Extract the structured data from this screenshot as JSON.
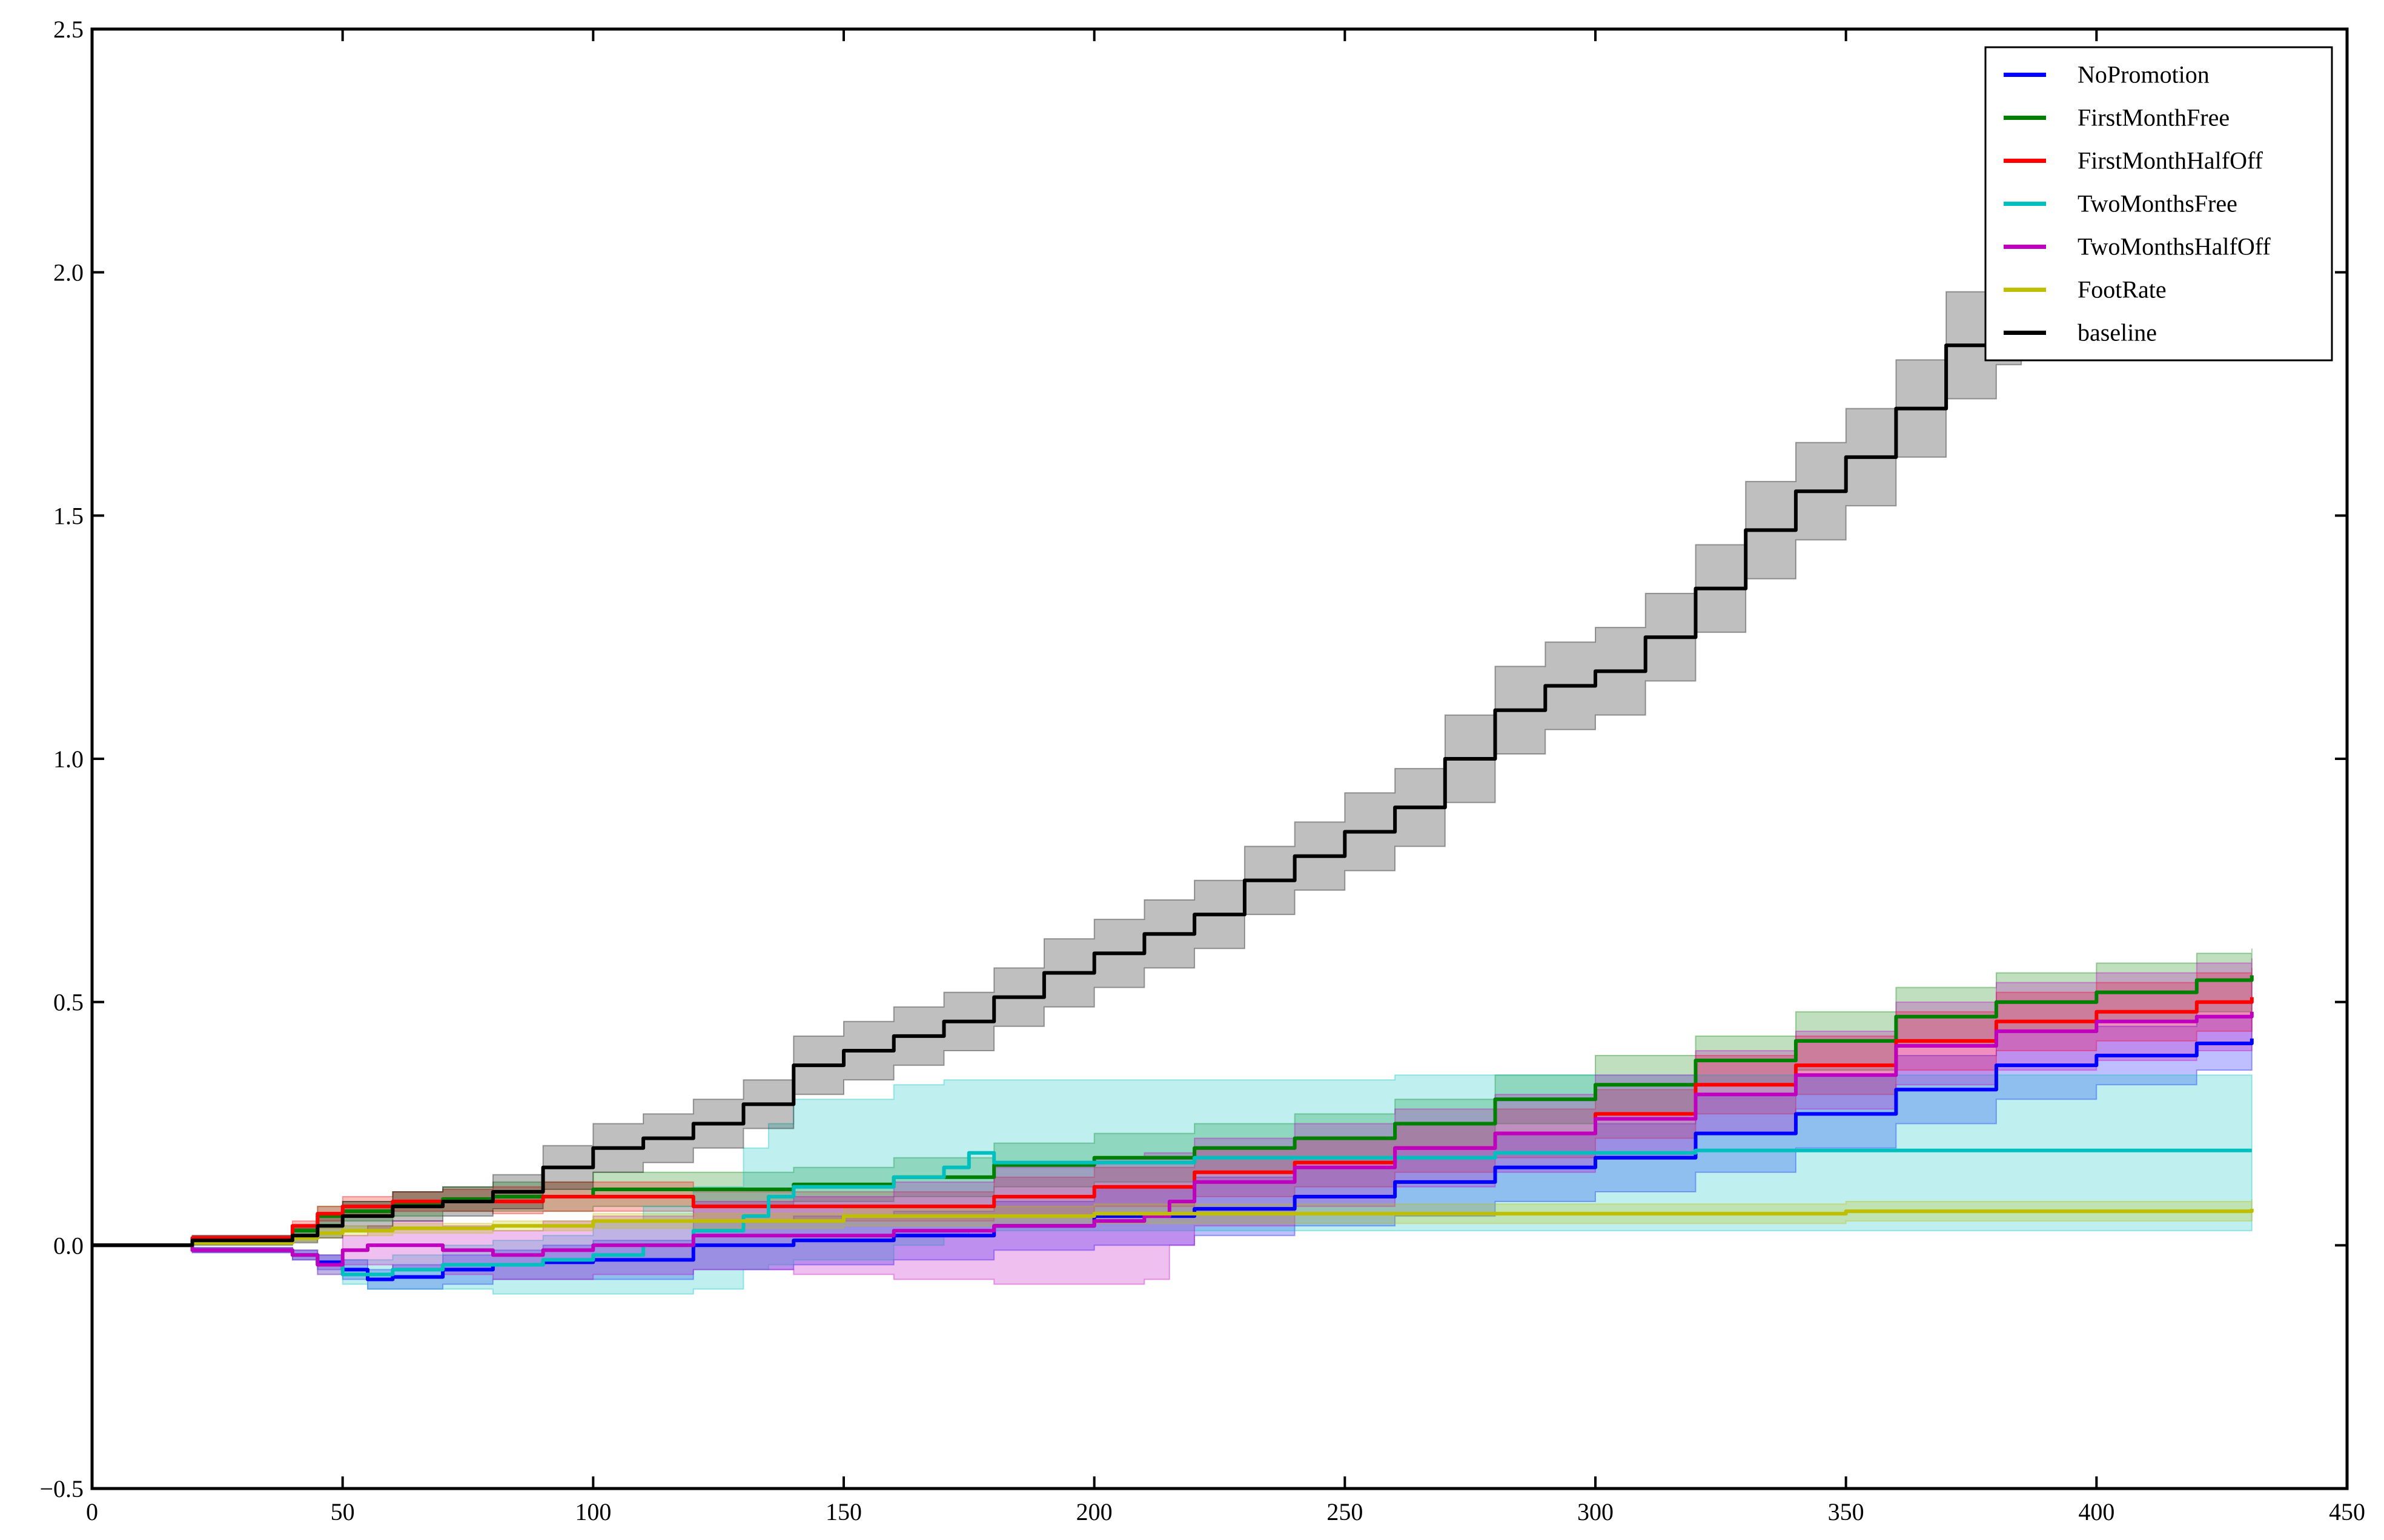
{
  "chart_data": {
    "type": "line",
    "title": "",
    "xlabel": "",
    "ylabel": "",
    "xlim": [
      0,
      450
    ],
    "ylim": [
      -0.5,
      2.5
    ],
    "x_ticks": [
      0,
      50,
      100,
      150,
      200,
      250,
      300,
      350,
      400,
      450
    ],
    "y_ticks": [
      -0.5,
      0.0,
      0.5,
      1.0,
      1.5,
      2.0,
      2.5
    ],
    "x_tick_labels": [
      "0",
      "50",
      "100",
      "150",
      "200",
      "250",
      "300",
      "350",
      "400",
      "450"
    ],
    "y_tick_labels": [
      "−0.5",
      "0.0",
      "0.5",
      "1.0",
      "1.5",
      "2.0",
      "2.5"
    ],
    "grid": false,
    "legend_position": "top-right",
    "series": [
      {
        "name": "NoPromotion",
        "color": "#0000ff",
        "x": [
          0,
          20,
          40,
          45,
          50,
          55,
          60,
          70,
          80,
          90,
          100,
          120,
          140,
          150,
          160,
          180,
          200,
          220,
          240,
          260,
          280,
          300,
          320,
          340,
          360,
          380,
          400,
          420,
          431
        ],
        "y": [
          0,
          -0.01,
          -0.02,
          -0.035,
          -0.05,
          -0.07,
          -0.065,
          -0.05,
          -0.04,
          -0.035,
          -0.03,
          0.0,
          0.01,
          0.01,
          0.02,
          0.04,
          0.06,
          0.075,
          0.1,
          0.13,
          0.16,
          0.18,
          0.23,
          0.27,
          0.32,
          0.37,
          0.39,
          0.415,
          0.425
        ],
        "lower": [
          0,
          -0.015,
          -0.03,
          -0.05,
          -0.07,
          -0.09,
          -0.09,
          -0.08,
          -0.07,
          -0.07,
          -0.07,
          -0.05,
          -0.04,
          -0.04,
          -0.03,
          -0.01,
          0.0,
          0.02,
          0.04,
          0.06,
          0.09,
          0.11,
          0.15,
          0.2,
          0.25,
          0.3,
          0.33,
          0.36,
          0.37
        ],
        "upper": [
          0,
          -0.005,
          -0.01,
          -0.02,
          -0.03,
          -0.05,
          -0.04,
          -0.02,
          -0.01,
          0.0,
          0.01,
          0.05,
          0.06,
          0.06,
          0.07,
          0.09,
          0.12,
          0.14,
          0.16,
          0.2,
          0.23,
          0.25,
          0.31,
          0.35,
          0.39,
          0.44,
          0.45,
          0.47,
          0.48
        ]
      },
      {
        "name": "FirstMonthFree",
        "color": "#008000",
        "x": [
          0,
          20,
          40,
          45,
          50,
          60,
          70,
          80,
          100,
          120,
          140,
          160,
          180,
          200,
          220,
          240,
          260,
          280,
          300,
          320,
          340,
          360,
          380,
          400,
          420,
          431
        ],
        "y": [
          0,
          0.01,
          0.03,
          0.06,
          0.07,
          0.085,
          0.095,
          0.1,
          0.115,
          0.115,
          0.125,
          0.14,
          0.165,
          0.18,
          0.2,
          0.22,
          0.25,
          0.3,
          0.33,
          0.38,
          0.42,
          0.47,
          0.5,
          0.52,
          0.545,
          0.555
        ],
        "lower": [
          0,
          0.005,
          0.02,
          0.04,
          0.05,
          0.06,
          0.07,
          0.07,
          0.08,
          0.08,
          0.09,
          0.1,
          0.12,
          0.13,
          0.15,
          0.17,
          0.2,
          0.25,
          0.27,
          0.33,
          0.36,
          0.41,
          0.44,
          0.46,
          0.48,
          0.49
        ],
        "upper": [
          0,
          0.015,
          0.04,
          0.08,
          0.09,
          0.11,
          0.12,
          0.13,
          0.15,
          0.15,
          0.16,
          0.18,
          0.21,
          0.23,
          0.25,
          0.27,
          0.3,
          0.35,
          0.39,
          0.43,
          0.48,
          0.53,
          0.56,
          0.58,
          0.6,
          0.61
        ]
      },
      {
        "name": "FirstMonthHalfOff",
        "color": "#ff0000",
        "x": [
          0,
          20,
          40,
          45,
          50,
          60,
          70,
          80,
          90,
          100,
          120,
          140,
          160,
          180,
          200,
          220,
          240,
          260,
          280,
          300,
          320,
          340,
          360,
          380,
          400,
          420,
          431
        ],
        "y": [
          0,
          0.015,
          0.04,
          0.065,
          0.08,
          0.09,
          0.09,
          0.09,
          0.1,
          0.1,
          0.08,
          0.08,
          0.08,
          0.1,
          0.12,
          0.15,
          0.17,
          0.2,
          0.23,
          0.27,
          0.33,
          0.37,
          0.42,
          0.46,
          0.48,
          0.5,
          0.51
        ],
        "lower": [
          0,
          0.01,
          0.03,
          0.05,
          0.06,
          0.07,
          0.07,
          0.065,
          0.07,
          0.07,
          0.05,
          0.05,
          0.05,
          0.06,
          0.08,
          0.1,
          0.12,
          0.15,
          0.18,
          0.22,
          0.27,
          0.31,
          0.36,
          0.4,
          0.42,
          0.44,
          0.45
        ],
        "upper": [
          0,
          0.02,
          0.05,
          0.08,
          0.1,
          0.11,
          0.115,
          0.12,
          0.13,
          0.13,
          0.11,
          0.11,
          0.11,
          0.14,
          0.16,
          0.2,
          0.22,
          0.25,
          0.28,
          0.32,
          0.39,
          0.43,
          0.48,
          0.52,
          0.54,
          0.56,
          0.57
        ]
      },
      {
        "name": "TwoMonthsFree",
        "color": "#00bfbf",
        "x": [
          0,
          20,
          40,
          45,
          50,
          55,
          60,
          70,
          80,
          90,
          100,
          110,
          120,
          130,
          135,
          140,
          145,
          160,
          170,
          175,
          180,
          190,
          200,
          220,
          240,
          260,
          280,
          300,
          320,
          340,
          360,
          380,
          400,
          420,
          431
        ],
        "y": [
          0,
          -0.01,
          -0.02,
          -0.04,
          -0.06,
          -0.06,
          -0.05,
          -0.04,
          -0.04,
          -0.03,
          -0.02,
          0.0,
          0.03,
          0.06,
          0.1,
          0.12,
          0.12,
          0.14,
          0.16,
          0.19,
          0.17,
          0.17,
          0.17,
          0.18,
          0.18,
          0.18,
          0.19,
          0.19,
          0.195,
          0.195,
          0.195,
          0.195,
          0.195,
          0.195,
          0.195
        ],
        "lower": [
          0,
          -0.015,
          -0.03,
          -0.06,
          -0.08,
          -0.09,
          -0.09,
          -0.09,
          -0.1,
          -0.1,
          -0.1,
          -0.1,
          -0.09,
          -0.05,
          -0.04,
          -0.03,
          -0.03,
          0.0,
          0.02,
          0.03,
          0.03,
          0.03,
          0.03,
          0.03,
          0.03,
          0.03,
          0.03,
          0.03,
          0.03,
          0.03,
          0.03,
          0.03,
          0.03,
          0.03,
          0.03
        ],
        "upper": [
          0,
          -0.005,
          -0.01,
          -0.02,
          -0.03,
          -0.03,
          -0.02,
          0.0,
          0.01,
          0.02,
          0.05,
          0.08,
          0.12,
          0.2,
          0.25,
          0.3,
          0.3,
          0.33,
          0.34,
          0.34,
          0.34,
          0.34,
          0.34,
          0.34,
          0.34,
          0.35,
          0.35,
          0.35,
          0.35,
          0.35,
          0.35,
          0.35,
          0.35,
          0.35,
          0.35
        ]
      },
      {
        "name": "TwoMonthsHalfOff",
        "color": "#bf00bf",
        "x": [
          0,
          20,
          40,
          45,
          50,
          55,
          60,
          70,
          80,
          90,
          100,
          120,
          140,
          160,
          180,
          200,
          210,
          215,
          220,
          240,
          260,
          280,
          300,
          320,
          340,
          360,
          380,
          400,
          420,
          431
        ],
        "y": [
          0,
          -0.01,
          -0.02,
          -0.04,
          -0.01,
          0.0,
          0.0,
          -0.01,
          -0.02,
          -0.01,
          0.0,
          0.02,
          0.02,
          0.03,
          0.04,
          0.05,
          0.06,
          0.09,
          0.13,
          0.16,
          0.2,
          0.23,
          0.26,
          0.31,
          0.35,
          0.41,
          0.44,
          0.46,
          0.47,
          0.48
        ],
        "lower": [
          0,
          -0.015,
          -0.03,
          -0.06,
          -0.04,
          -0.04,
          -0.05,
          -0.06,
          -0.07,
          -0.07,
          -0.06,
          -0.05,
          -0.06,
          -0.07,
          -0.08,
          -0.08,
          -0.07,
          0.0,
          0.04,
          0.08,
          0.12,
          0.15,
          0.18,
          0.23,
          0.28,
          0.33,
          0.36,
          0.38,
          0.4,
          0.41
        ],
        "upper": [
          0,
          -0.005,
          -0.01,
          -0.02,
          0.02,
          0.04,
          0.05,
          0.04,
          0.03,
          0.05,
          0.06,
          0.09,
          0.1,
          0.13,
          0.16,
          0.18,
          0.19,
          0.19,
          0.22,
          0.25,
          0.28,
          0.31,
          0.35,
          0.4,
          0.44,
          0.5,
          0.54,
          0.56,
          0.58,
          0.59
        ]
      },
      {
        "name": "FootRate",
        "color": "#bfbf00",
        "x": [
          0,
          20,
          40,
          45,
          50,
          60,
          80,
          100,
          150,
          200,
          250,
          300,
          350,
          400,
          431
        ],
        "y": [
          0,
          0.005,
          0.015,
          0.025,
          0.03,
          0.035,
          0.04,
          0.05,
          0.06,
          0.065,
          0.065,
          0.065,
          0.07,
          0.07,
          0.075
        ],
        "lower": [
          0,
          0.002,
          0.008,
          0.015,
          0.02,
          0.025,
          0.03,
          0.035,
          0.04,
          0.045,
          0.045,
          0.045,
          0.05,
          0.05,
          0.055
        ],
        "upper": [
          0,
          0.008,
          0.022,
          0.035,
          0.04,
          0.045,
          0.05,
          0.065,
          0.08,
          0.085,
          0.085,
          0.085,
          0.09,
          0.09,
          0.095
        ]
      },
      {
        "name": "baseline",
        "color": "#000000",
        "x": [
          0,
          20,
          40,
          45,
          50,
          60,
          70,
          80,
          90,
          100,
          110,
          120,
          130,
          140,
          150,
          160,
          170,
          180,
          190,
          200,
          210,
          220,
          230,
          240,
          250,
          260,
          270,
          280,
          290,
          300,
          310,
          320,
          330,
          340,
          350,
          360,
          370,
          380,
          385
        ],
        "y": [
          0,
          0.01,
          0.02,
          0.04,
          0.06,
          0.08,
          0.09,
          0.11,
          0.16,
          0.2,
          0.22,
          0.25,
          0.29,
          0.37,
          0.4,
          0.43,
          0.46,
          0.51,
          0.56,
          0.6,
          0.64,
          0.68,
          0.75,
          0.8,
          0.85,
          0.9,
          1.0,
          1.1,
          1.15,
          1.18,
          1.25,
          1.35,
          1.47,
          1.55,
          1.62,
          1.72,
          1.85,
          1.92,
          1.93
        ],
        "lower": [
          0,
          0.0,
          0.005,
          0.015,
          0.03,
          0.05,
          0.06,
          0.075,
          0.115,
          0.15,
          0.17,
          0.2,
          0.24,
          0.31,
          0.34,
          0.37,
          0.4,
          0.45,
          0.49,
          0.53,
          0.57,
          0.61,
          0.68,
          0.73,
          0.77,
          0.82,
          0.91,
          1.01,
          1.06,
          1.09,
          1.16,
          1.26,
          1.37,
          1.45,
          1.52,
          1.62,
          1.74,
          1.81,
          1.82
        ],
        "upper": [
          0,
          0.02,
          0.035,
          0.065,
          0.09,
          0.11,
          0.12,
          0.145,
          0.205,
          0.25,
          0.27,
          0.3,
          0.34,
          0.43,
          0.46,
          0.49,
          0.52,
          0.57,
          0.63,
          0.67,
          0.71,
          0.75,
          0.82,
          0.87,
          0.93,
          0.98,
          1.09,
          1.19,
          1.24,
          1.27,
          1.34,
          1.44,
          1.57,
          1.65,
          1.72,
          1.82,
          1.96,
          2.03,
          2.04
        ]
      }
    ]
  }
}
